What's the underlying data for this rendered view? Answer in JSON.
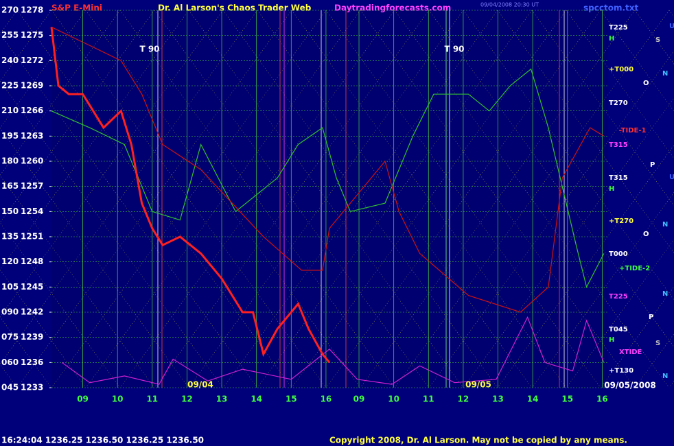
{
  "chart_data": {
    "type": "line",
    "title": "S&P E-Mini",
    "subtitle": "Dr. Al Larson's Chaos Trader Web",
    "site": "Daytradingforecasts.com",
    "file": "spcctom.txt",
    "timestamp": "09/04/2008 20:30 UT",
    "status": "16:24:04  1236.25  1236.50  1236.25  1236.50",
    "copyright": "Copyright 2008, Dr. Al Larson. May not be copied by any means.",
    "xlim": [
      -0.9,
      15.1
    ],
    "xticks": [
      {
        "value": 0,
        "label": "09"
      },
      {
        "value": 1,
        "label": "10"
      },
      {
        "value": 2,
        "label": "11"
      },
      {
        "value": 3,
        "label": "12"
      },
      {
        "value": 4,
        "label": "13"
      },
      {
        "value": 5,
        "label": "14"
      },
      {
        "value": 6,
        "label": "15"
      },
      {
        "value": 7,
        "label": "16"
      },
      {
        "value": 7.95,
        "label": "09"
      },
      {
        "value": 8.95,
        "label": "10"
      },
      {
        "value": 9.95,
        "label": "11"
      },
      {
        "value": 10.95,
        "label": "12"
      },
      {
        "value": 11.95,
        "label": "13"
      },
      {
        "value": 12.95,
        "label": "14"
      },
      {
        "value": 13.95,
        "label": "15"
      },
      {
        "value": 14.95,
        "label": "16"
      }
    ],
    "ylim": [
      1233,
      1278
    ],
    "yticks": [
      1233,
      1236,
      1239,
      1242,
      1245,
      1248,
      1251,
      1254,
      1257,
      1260,
      1263,
      1266,
      1269,
      1272,
      1275,
      1278
    ],
    "y2lim": [
      45,
      270
    ],
    "y2ticks": [
      {
        "value": 45,
        "label": "045"
      },
      {
        "value": 60,
        "label": "060"
      },
      {
        "value": 75,
        "label": "075"
      },
      {
        "value": 90,
        "label": "090"
      },
      105,
      120,
      135,
      150,
      165,
      180,
      195,
      210,
      225,
      240,
      255,
      270
    ],
    "grid": true,
    "series": [
      {
        "name": "price",
        "color": "#ff2020",
        "x": [
          -0.9,
          -0.7,
          -0.4,
          0,
          0.3,
          0.6,
          1.1,
          1.4,
          1.7,
          2.0,
          2.3,
          2.8,
          3.4,
          4.0,
          4.3,
          4.6,
          4.9,
          5.2,
          5.6,
          6.2,
          6.5,
          6.9,
          7.1
        ],
        "values": [
          1276,
          1269,
          1268,
          1268,
          1266,
          1264,
          1266,
          1262,
          1255,
          1252,
          1250,
          1251,
          1249,
          1246,
          1244,
          1242,
          1242,
          1237,
          1240,
          1243,
          1240,
          1237,
          1236
        ]
      },
      {
        "name": "red-line",
        "color": "#d01010",
        "x": [
          -0.9,
          1.1,
          1.7,
          2.3,
          3.4,
          5.2,
          6.3,
          6.9,
          7.1,
          7.7,
          8.7,
          9.1,
          9.7,
          11.1,
          12.6,
          13.4,
          13.8,
          14.6,
          15.0
        ],
        "values": [
          1276,
          1272,
          1268,
          1262,
          1259,
          1251,
          1247,
          1247,
          1252,
          1255,
          1260,
          1254,
          1249,
          1244,
          1242,
          1245,
          1258,
          1264,
          1263
        ]
      },
      {
        "name": "green-line",
        "color": "#30c030",
        "x": [
          -0.9,
          0.2,
          1.2,
          2.0,
          2.8,
          3.4,
          4.4,
          5.6,
          6.2,
          6.9,
          7.3,
          7.7,
          8.7,
          9.5,
          10.1,
          11.1,
          11.7,
          12.3,
          12.9,
          13.4,
          14.2,
          14.5,
          15.0
        ],
        "values": [
          1266,
          1264,
          1262,
          1254,
          1253,
          1262,
          1254,
          1258,
          1262,
          1264,
          1258,
          1254,
          1255,
          1263,
          1268,
          1268,
          1266,
          1269,
          1271,
          1264,
          1250,
          1245,
          1249
        ]
      },
      {
        "name": "xtide",
        "color": "#d020d0",
        "axis": "y2",
        "x": [
          -0.6,
          0.2,
          1.2,
          2.2,
          2.6,
          3.6,
          4.6,
          6.0,
          7.1,
          7.9,
          8.9,
          9.7,
          10.7,
          11.9,
          12.8,
          13.3,
          14.1,
          14.5,
          15.0
        ],
        "values": [
          60,
          48,
          52,
          47,
          62,
          49,
          56,
          50,
          68,
          50,
          47,
          58,
          48,
          50,
          87,
          60,
          55,
          85,
          60
        ]
      }
    ],
    "annotations": [
      "T 90",
      "T 90",
      "09/04",
      "09/05",
      "09/05/2008"
    ],
    "right_labels": [
      "T225",
      "H",
      "+T000",
      "T270",
      "-TIDE-1",
      "T315",
      "T315",
      "H",
      "+T270",
      "T000",
      "+TIDE-2",
      "T225",
      "T045",
      "H",
      "XTIDE",
      "+T130"
    ],
    "far_labels": [
      "U",
      "S",
      "N",
      "O",
      "P",
      "U",
      "N",
      "O",
      "N",
      "P",
      "S",
      "N"
    ]
  }
}
